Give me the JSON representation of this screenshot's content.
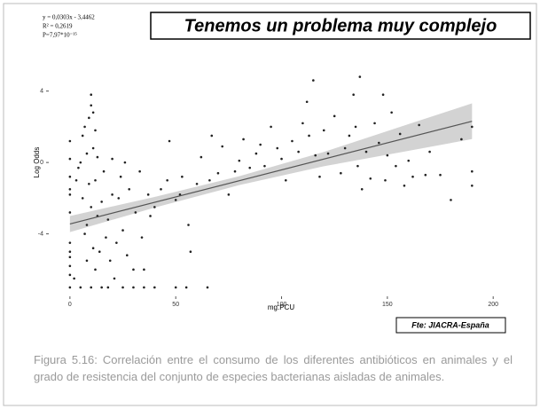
{
  "title": "Tenemos un problema muy complejo",
  "source": "Fte: JIACRA-España",
  "caption": "Figura 5.16: Correlación entre el consumo de los diferentes antibióticos en animales y el grado de resistencia del conjunto de especies bacterianas aisladas de animales.",
  "chart_data": {
    "type": "scatter",
    "annotations": [
      "y = 0,0303x - 3,4462",
      "R² = 0,2619",
      "P=7,97*10⁻¹⁵"
    ],
    "x_label": "mg.PCU",
    "y_label": "Log Odds",
    "xlim": [
      -10,
      215
    ],
    "ylim": [
      -7.5,
      5.5
    ],
    "xticks": [
      0,
      50,
      100,
      150,
      200
    ],
    "yticks": [
      -4,
      0,
      4
    ],
    "color": "#222222",
    "x": [
      0,
      0,
      0,
      0,
      0,
      0,
      0,
      0,
      0,
      0,
      0,
      0,
      2,
      3,
      4,
      5,
      5,
      6,
      6,
      7,
      7,
      8,
      8,
      8,
      9,
      9,
      10,
      10,
      10,
      10,
      11,
      11,
      11,
      12,
      12,
      12,
      13,
      13,
      14,
      15,
      15,
      16,
      17,
      18,
      18,
      19,
      20,
      20,
      21,
      22,
      23,
      24,
      25,
      25,
      26,
      27,
      28,
      30,
      30,
      31,
      33,
      34,
      35,
      35,
      37,
      38,
      40,
      40,
      43,
      46,
      47,
      50,
      50,
      52,
      53,
      55,
      56,
      57,
      60,
      62,
      65,
      66,
      67,
      70,
      72,
      75,
      78,
      80,
      82,
      85,
      88,
      90,
      92,
      95,
      98,
      100,
      102,
      105,
      108,
      110,
      112,
      113,
      115,
      116,
      118,
      120,
      122,
      125,
      128,
      130,
      132,
      134,
      135,
      136,
      137,
      138,
      140,
      142,
      144,
      146,
      148,
      149,
      150,
      152,
      154,
      156,
      158,
      160,
      162,
      165,
      168,
      170,
      175,
      180,
      185,
      190,
      190,
      190
    ],
    "values": [
      -7,
      -6.3,
      -5.8,
      -5.3,
      -5,
      -4.5,
      -2.8,
      -1.8,
      -1.5,
      -0.8,
      0.2,
      1.2,
      -6.5,
      -1,
      -0.3,
      -7,
      0,
      1.5,
      -2,
      -4,
      2,
      -3.5,
      -5.5,
      0.5,
      2.5,
      -1.2,
      -7,
      3.2,
      3.8,
      -2.5,
      2.8,
      -4.8,
      0.8,
      1.8,
      -6,
      -1,
      -3,
      0.3,
      -5,
      -7,
      -2.2,
      -0.5,
      -4.2,
      -7,
      -3.2,
      -5.5,
      -1.8,
      0.2,
      -6.5,
      -4.5,
      -2,
      -0.8,
      -7,
      -3.8,
      0,
      -5.2,
      -1.5,
      -7,
      -6,
      -2.8,
      -0.5,
      -4.2,
      -7,
      -6,
      -1.8,
      -3,
      -7,
      -2.5,
      -1.5,
      -1,
      1.2,
      -7,
      -2.1,
      -1.8,
      -0.8,
      -7,
      -3.5,
      -5,
      -1.2,
      0.3,
      -7,
      -1,
      1.5,
      -0.6,
      0.9,
      -1.8,
      -0.5,
      0.1,
      1.3,
      -0.3,
      0.5,
      1,
      -0.2,
      2,
      0.8,
      0.2,
      -1,
      1.2,
      0.6,
      2.2,
      3.4,
      1.5,
      4.6,
      0.4,
      -0.8,
      1.8,
      0.5,
      2.6,
      -0.6,
      0.8,
      1.5,
      3.8,
      2,
      -0.2,
      4.8,
      -1.5,
      0.6,
      -0.9,
      2.2,
      1.1,
      3.8,
      -1,
      0.4,
      2.8,
      -0.2,
      1.6,
      -1.3,
      0.1,
      -0.8,
      2.1,
      -0.7,
      0.6,
      -0.7,
      -2.1,
      1.3,
      2,
      -0.5,
      -1.3
    ],
    "fit": {
      "color": "#555555",
      "x": [
        0,
        190
      ],
      "values": [
        -3.4462,
        2.3108
      ]
    },
    "band": {
      "color": "#c8c8c8",
      "x": [
        0,
        40,
        80,
        120,
        160,
        190
      ],
      "lower": [
        -3.9,
        -2.53,
        -1.27,
        -0.21,
        0.65,
        1.31
      ],
      "upper": [
        -3.0,
        -1.93,
        -0.77,
        0.59,
        2.15,
        3.31
      ]
    }
  }
}
